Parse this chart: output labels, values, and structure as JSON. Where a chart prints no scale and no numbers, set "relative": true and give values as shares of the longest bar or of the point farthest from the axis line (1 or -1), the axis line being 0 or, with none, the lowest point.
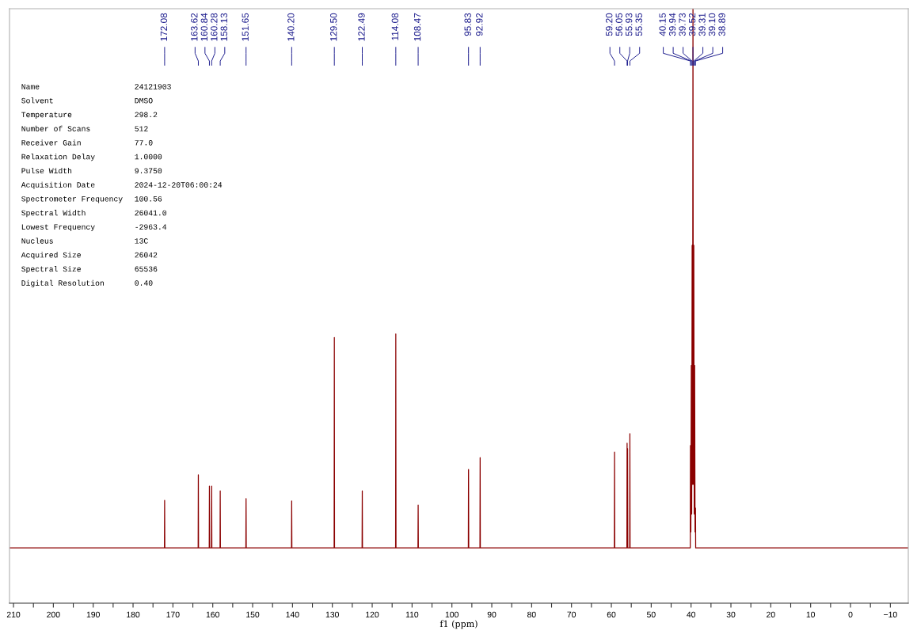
{
  "chart_data": {
    "type": "line",
    "relative": true,
    "xlabel": "f1 (ppm)",
    "tick_labels": "x",
    "grid": false,
    "marker": "none",
    "line_style": "solid",
    "xlim": [
      211,
      -14.5
    ],
    "xticks": [
      210,
      {
        "value": 205,
        "label": null
      },
      200,
      {
        "value": 195,
        "label": null
      },
      190,
      {
        "value": 185,
        "label": null
      },
      180,
      {
        "value": 175,
        "label": null
      },
      170,
      {
        "value": 165,
        "label": null
      },
      160,
      {
        "value": 155,
        "label": null
      },
      150,
      {
        "value": 145,
        "label": null
      },
      140,
      {
        "value": 135,
        "label": null
      },
      130,
      {
        "value": 125,
        "label": null
      },
      120,
      {
        "value": 115,
        "label": null
      },
      110,
      {
        "value": 105,
        "label": null
      },
      100,
      {
        "value": 95,
        "label": null
      },
      90,
      {
        "value": 85,
        "label": null
      },
      80,
      {
        "value": 75,
        "label": null
      },
      70,
      {
        "value": 65,
        "label": null
      },
      60,
      {
        "value": 55,
        "label": null
      },
      50,
      {
        "value": 45,
        "label": null
      },
      40,
      {
        "value": 35,
        "label": null
      },
      30,
      {
        "value": 25,
        "label": null
      },
      20,
      {
        "value": 15,
        "label": null
      },
      10,
      {
        "value": 5,
        "label": null
      },
      0,
      {
        "value": -5,
        "label": null
      },
      {
        "value": -10,
        "label": "−10"
      }
    ],
    "series": [
      {
        "color": "#8b0000",
        "x": [
          211,
          172.13,
          172.08,
          172.03,
          163.67,
          163.62,
          163.57,
          160.89,
          160.84,
          160.79,
          160.33,
          160.28,
          160.23,
          158.18,
          158.13,
          158.08,
          151.7,
          151.65,
          151.6,
          140.25,
          140.2,
          140.15,
          129.55,
          129.5,
          129.45,
          122.54,
          122.49,
          122.44,
          114.13,
          114.08,
          114.03,
          108.52,
          108.47,
          108.42,
          95.88,
          95.83,
          95.78,
          92.97,
          92.92,
          92.87,
          59.25,
          59.2,
          59.15,
          56.1,
          56.05,
          55.99,
          55.93,
          55.88,
          55.4,
          55.35,
          55.3,
          40.2,
          40.15,
          40.05,
          39.94,
          39.84,
          39.73,
          39.63,
          39.52,
          39.42,
          39.31,
          39.21,
          39.1,
          39.0,
          38.89,
          38.84,
          -14.5
        ],
        "values": [
          0.093,
          0.093,
          0.173,
          0.093,
          0.093,
          0.216,
          0.093,
          0.093,
          0.197,
          0.093,
          0.093,
          0.197,
          0.093,
          0.093,
          0.189,
          0.093,
          0.093,
          0.176,
          0.093,
          0.093,
          0.172,
          0.093,
          0.093,
          0.447,
          0.093,
          0.093,
          0.189,
          0.093,
          0.093,
          0.453,
          0.093,
          0.093,
          0.165,
          0.093,
          0.093,
          0.225,
          0.093,
          0.093,
          0.245,
          0.093,
          0.093,
          0.254,
          0.093,
          0.093,
          0.269,
          0.1,
          0.26,
          0.093,
          0.093,
          0.285,
          0.093,
          0.093,
          0.265,
          0.12,
          0.4,
          0.15,
          0.602,
          0.2,
          1,
          0.2,
          0.602,
          0.15,
          0.4,
          0.12,
          0.16,
          0.093,
          0.093
        ]
      }
    ],
    "annotations": [
      "172.08",
      "163.62",
      "160.84",
      "160.28",
      "158.13",
      "151.65",
      "140.20",
      "129.50",
      "122.49",
      "114.08",
      "108.47",
      "95.83",
      "92.92",
      "59.20",
      "56.05",
      "55.93",
      "55.35",
      "40.15",
      "39.94",
      "39.73",
      "39.52",
      "39.31",
      "39.10",
      "38.89",
      "Name",
      "24121903",
      "Solvent",
      "DMSO",
      "Temperature",
      "298.2",
      "Number of Scans",
      "512",
      "Receiver Gain",
      "77.0",
      "Relaxation Delay",
      "1.0000",
      "Pulse Width",
      "9.3750",
      "Acquisition Date",
      "2024-12-20T06:00:24",
      "Spectrometer Frequency",
      "100.56",
      "Spectral Width",
      "26041.0",
      "Lowest Frequency",
      "-2963.4",
      "Nucleus",
      "13C",
      "Acquired Size",
      "26042",
      "Spectral Size",
      "65536",
      "Digital Resolution",
      "0.40"
    ]
  }
}
